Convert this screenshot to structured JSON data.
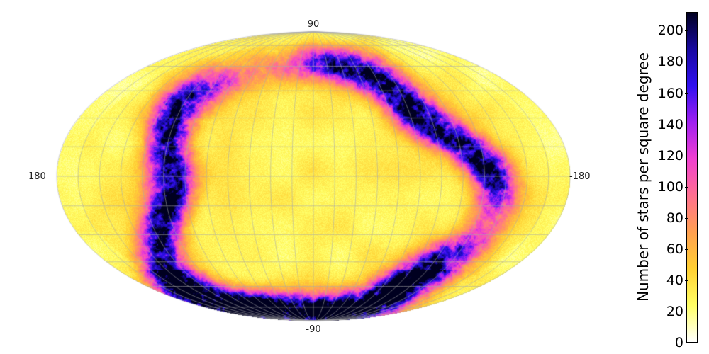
{
  "chart_data": {
    "type": "heatmap",
    "projection": "mollweide",
    "grid": true,
    "labels": {
      "top": "90",
      "bottom": "-90",
      "left": "180",
      "right": "-180"
    },
    "colorbar": {
      "label": "Number of stars per square degree",
      "min": 0,
      "max": 212,
      "ticks": [
        "0",
        "20",
        "40",
        "60",
        "80",
        "100",
        "120",
        "140",
        "160",
        "180",
        "200"
      ],
      "tick_values": [
        0,
        20,
        40,
        60,
        80,
        100,
        120,
        140,
        160,
        180,
        200
      ],
      "colormap": [
        "#ffffff",
        "#ffff66",
        "#ffd033",
        "#ffa050",
        "#ff7090",
        "#f040d0",
        "#a020f0",
        "#3010f0",
        "#1808a0",
        "#000020"
      ]
    },
    "ranges": {
      "lon": [
        -180,
        180
      ],
      "lat": [
        -90,
        90
      ],
      "value": [
        0,
        212
      ]
    }
  }
}
